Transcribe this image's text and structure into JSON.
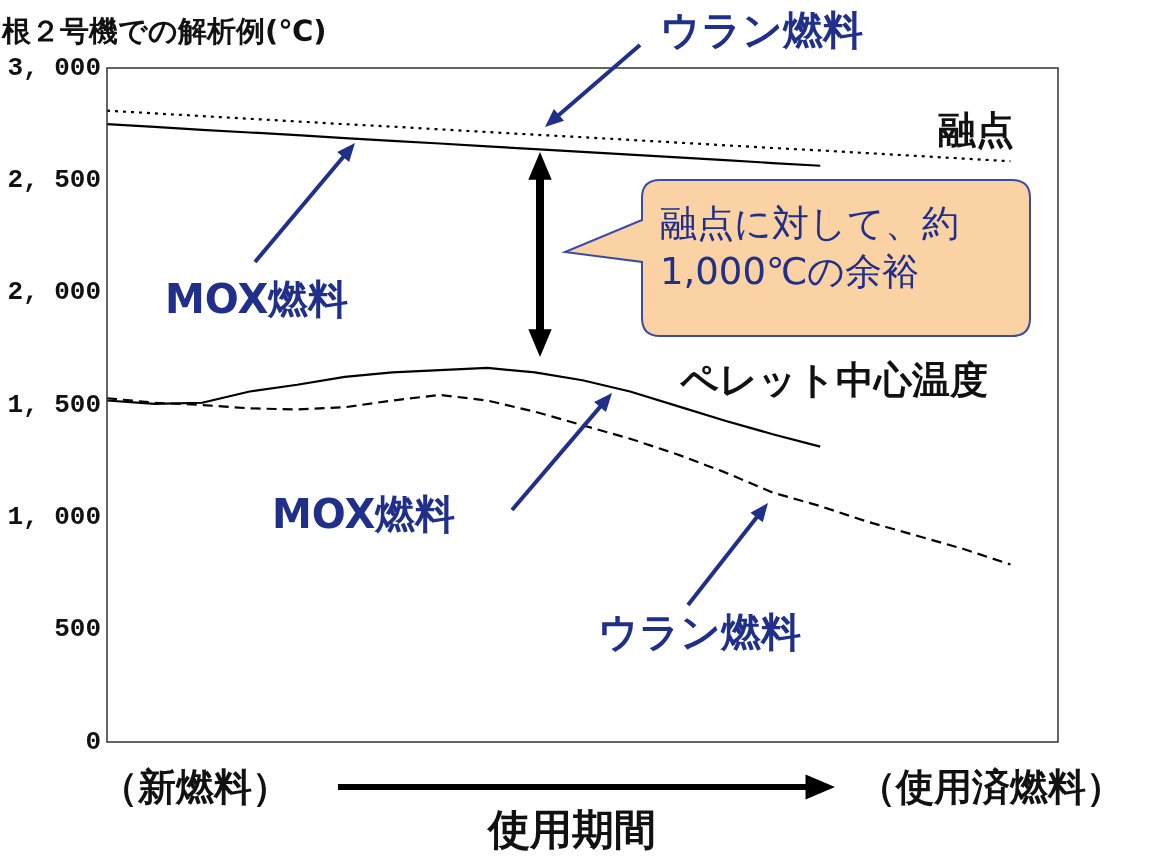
{
  "chart_data": {
    "type": "line",
    "ylabel": "根２号機での解析例(℃)",
    "categories": [
      null,
      null,
      null,
      null,
      null,
      null,
      null,
      null,
      null,
      null,
      null,
      null,
      null,
      null,
      null,
      null,
      null,
      null,
      null,
      null,
      null
    ],
    "series": [
      {
        "color": "#000000",
        "line_style": "dotted",
        "values": [
          2810,
          2798,
          2786,
          2774,
          2762,
          2750,
          2739,
          2727,
          2715,
          2703,
          2692,
          2680,
          2668,
          2656,
          2644,
          2633,
          2621,
          2609,
          2597,
          2585,
          null
        ]
      },
      {
        "color": "#000000",
        "line_style": "solid",
        "values": [
          2750,
          2738,
          2725,
          2713,
          2701,
          2688,
          2676,
          2664,
          2651,
          2639,
          2627,
          2614,
          2602,
          2590,
          2577,
          2565,
          null,
          null,
          null,
          null,
          null
        ]
      },
      {
        "color": "#000000",
        "line_style": "solid",
        "values": [
          1520,
          1505,
          1510,
          1560,
          1590,
          1625,
          1645,
          1655,
          1665,
          1645,
          1610,
          1560,
          1495,
          1430,
          1370,
          1315,
          null,
          null,
          null,
          null,
          null
        ]
      },
      {
        "color": "#000000",
        "line_style": "dashed",
        "values": [
          1530,
          1510,
          1500,
          1485,
          1480,
          1490,
          1520,
          1545,
          1520,
          1470,
          1410,
          1350,
          1280,
          1200,
          1110,
          1050,
          980,
          920,
          860,
          790,
          null
        ]
      }
    ],
    "ylim": [
      0,
      3000
    ],
    "yticks": [
      0,
      500,
      {
        "value": 1000,
        "label": "1, 000"
      },
      {
        "value": 1500,
        "label": "1, 500"
      },
      {
        "value": 2000,
        "label": "2, 000"
      },
      {
        "value": 2500,
        "label": "2, 500"
      },
      {
        "value": 3000,
        "label": "3, 000"
      }
    ],
    "annotations": [
      "ウラン燃料",
      "融点",
      "MOX燃料",
      "融点に対して、約\n1,000℃の余裕",
      "ペレット中心温度",
      "MOX燃料",
      "ウラン燃料",
      "（新燃料）",
      "使用期間",
      "（使用済燃料）"
    ],
    "marker": "none",
    "tick_labels": "y",
    "grid": false,
    "legend": false
  }
}
